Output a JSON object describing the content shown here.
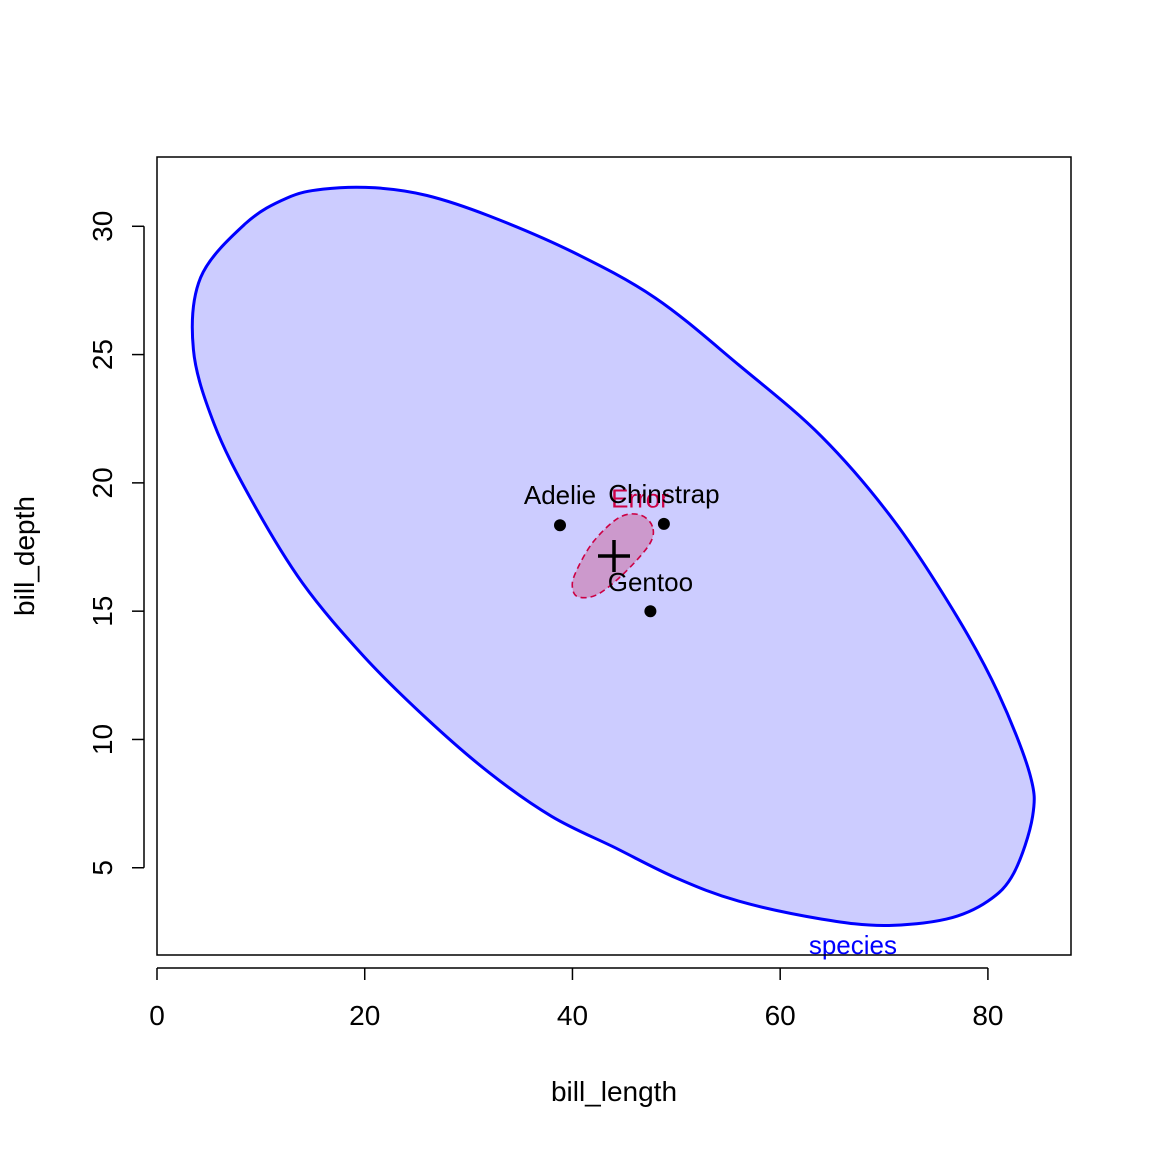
{
  "chart_data": {
    "type": "scatter",
    "xlabel": "bill_length",
    "ylabel": "bill_depth",
    "xlim": [
      0,
      88
    ],
    "ylim": [
      1.6,
      32.7
    ],
    "x_ticks": [
      0,
      20,
      40,
      60,
      80
    ],
    "y_ticks": [
      5,
      10,
      15,
      20,
      25,
      30
    ],
    "grid": false,
    "points": [
      {
        "label": "Adelie",
        "x": 38.8,
        "y": 18.35
      },
      {
        "label": "Chinstrap",
        "x": 48.8,
        "y": 18.4
      },
      {
        "label": "Gentoo",
        "x": 47.5,
        "y": 15.0
      }
    ],
    "grand_mean": {
      "x": 44.0,
      "y": 17.15
    },
    "ellipses": [
      {
        "label": "species",
        "center": [
          44.0,
          17.15
        ],
        "fill": "#ccccff",
        "stroke": "#0000ff",
        "dashed": false,
        "outline": [
          [
            3.5,
            25.2
          ],
          [
            4.2,
            28.0
          ],
          [
            8.5,
            30.1
          ],
          [
            12.5,
            31.1
          ],
          [
            16,
            31.45
          ],
          [
            21,
            31.5
          ],
          [
            26,
            31.2
          ],
          [
            32,
            30.4
          ],
          [
            40,
            29.0
          ],
          [
            48,
            27.2
          ],
          [
            56,
            24.6
          ],
          [
            64,
            21.8
          ],
          [
            71,
            18.5
          ],
          [
            77,
            14.8
          ],
          [
            81,
            11.8
          ],
          [
            84,
            8.7
          ],
          [
            84.3,
            7.0
          ],
          [
            82.5,
            4.8
          ],
          [
            80,
            3.7
          ],
          [
            76,
            3.0
          ],
          [
            70,
            2.75
          ],
          [
            64,
            3.0
          ],
          [
            56,
            3.7
          ],
          [
            50,
            4.6
          ],
          [
            44,
            5.8
          ],
          [
            38,
            7.0
          ],
          [
            32,
            8.7
          ],
          [
            26,
            10.8
          ],
          [
            20,
            13.2
          ],
          [
            14,
            16.1
          ],
          [
            9,
            19.4
          ],
          [
            5.5,
            22.3
          ],
          [
            3.5,
            25.2
          ]
        ]
      },
      {
        "label": "Error",
        "center": [
          44.0,
          17.2
        ],
        "fill": "#cc99cc",
        "stroke": "#cc0044",
        "dashed": true,
        "outline": [
          [
            47.7,
            18.3
          ],
          [
            46.5,
            18.75
          ],
          [
            44.5,
            18.65
          ],
          [
            42.0,
            17.7
          ],
          [
            40.3,
            16.5
          ],
          [
            40.0,
            15.9
          ],
          [
            40.6,
            15.55
          ],
          [
            42.4,
            15.65
          ],
          [
            44.9,
            16.45
          ],
          [
            47.4,
            17.6
          ],
          [
            47.7,
            18.3
          ]
        ]
      }
    ]
  }
}
